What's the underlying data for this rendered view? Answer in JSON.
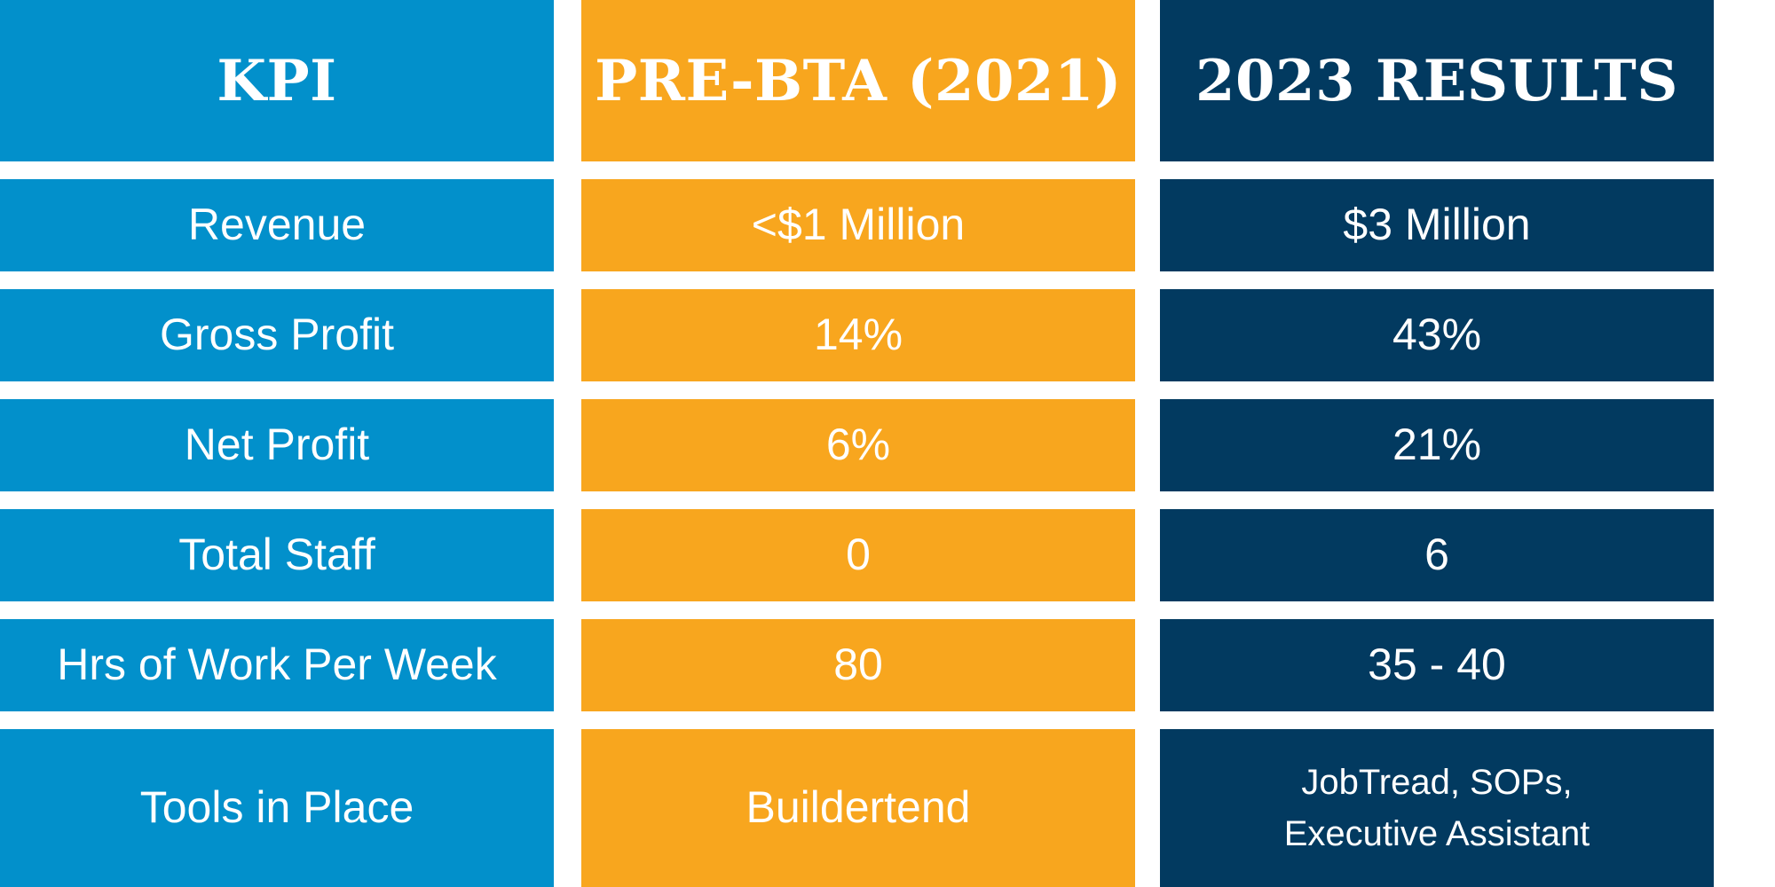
{
  "colors": {
    "kpi_column": "#0290cb",
    "pre_column": "#f8a61e",
    "results_column": "#023a60",
    "text": "#ffffff",
    "background": "#ffffff"
  },
  "headers": {
    "kpi": "KPI",
    "pre": "PRE-BTA (2021)",
    "results": "2023 RESULTS"
  },
  "rows": [
    {
      "kpi": "Revenue",
      "pre": "<$1 Million",
      "results": "$3 Million"
    },
    {
      "kpi": "Gross Profit",
      "pre": "14%",
      "results": "43%"
    },
    {
      "kpi": "Net Profit",
      "pre": "6%",
      "results": "21%"
    },
    {
      "kpi": "Total Staff",
      "pre": "0",
      "results": "6"
    },
    {
      "kpi": "Hrs of Work Per Week",
      "pre": "80",
      "results": "35 - 40"
    },
    {
      "kpi": "Tools in Place",
      "pre": "Buildertend",
      "results_lines": [
        "JobTread, SOPs,",
        "Executive Assistant"
      ]
    }
  ]
}
